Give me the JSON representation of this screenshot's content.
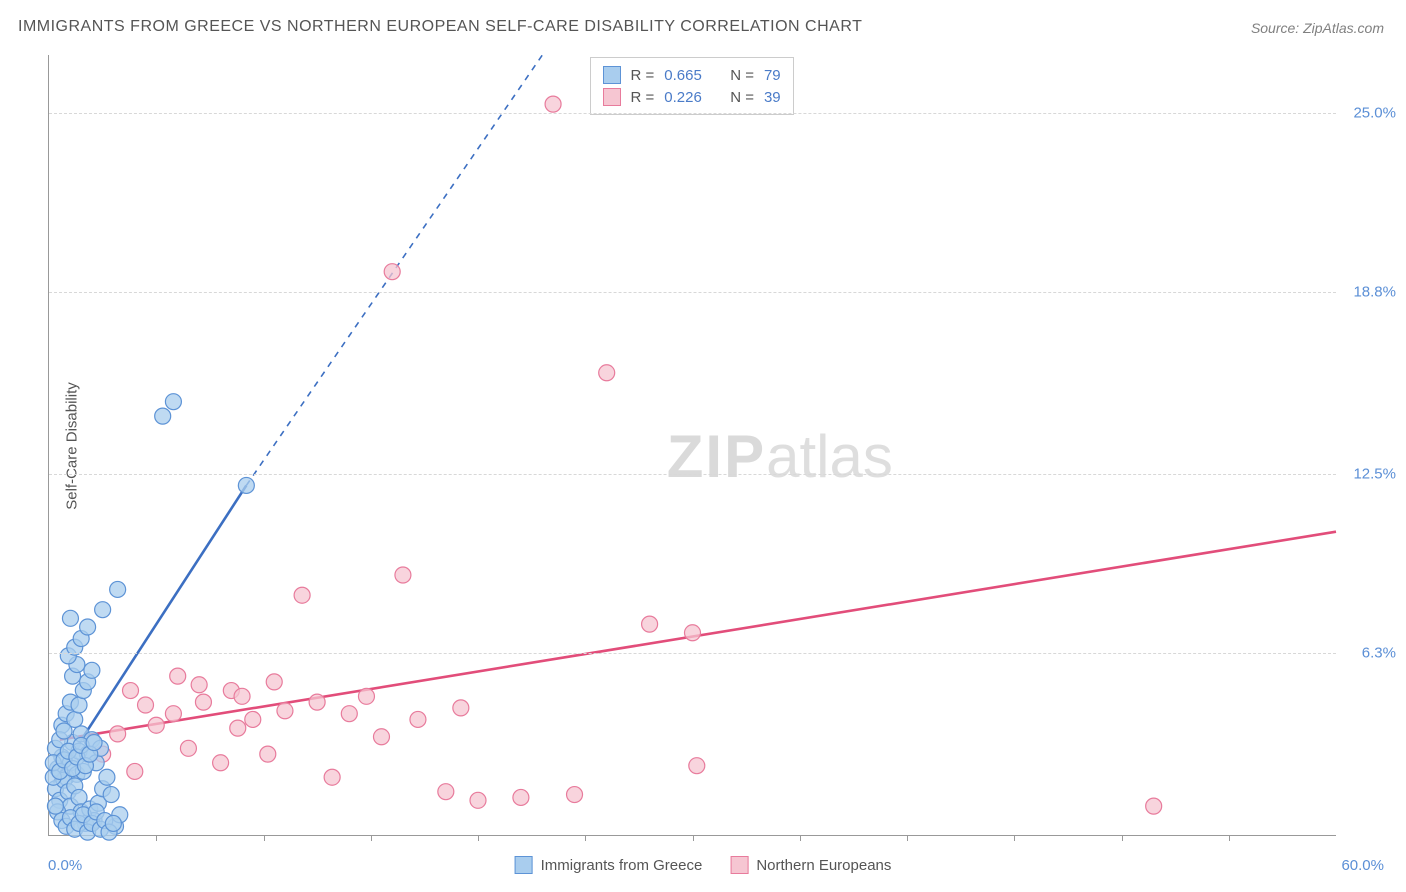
{
  "title": "IMMIGRANTS FROM GREECE VS NORTHERN EUROPEAN SELF-CARE DISABILITY CORRELATION CHART",
  "source_label": "Source: ZipAtlas.com",
  "watermark_zip": "ZIP",
  "watermark_atlas": "atlas",
  "chart": {
    "type": "scatter",
    "background_color": "#ffffff",
    "grid_color": "#d8d8d8",
    "axis_color": "#999999",
    "label_color": "#555555",
    "tick_label_color": "#5b8fd6",
    "xlim": [
      0,
      60
    ],
    "ylim": [
      0,
      27
    ],
    "xtick_step": 5,
    "ytick_positions": [
      6.3,
      12.5,
      18.8,
      25.0
    ],
    "xaxis_min_label": "0.0%",
    "xaxis_max_label": "60.0%",
    "ylabel": "Self-Care Disability",
    "marker_radius": 8,
    "marker_stroke_width": 1.2,
    "line_width_solid": 2.6,
    "line_width_dash": 1.6
  },
  "series": [
    {
      "name": "Immigrants from Greece",
      "color_fill": "#a9cdee",
      "color_stroke": "#5d93d6",
      "line_color": "#3c6fc2",
      "r_value": "0.665",
      "n_value": "79",
      "trend": {
        "x1": 0.2,
        "y1": 1.8,
        "x2": 9.2,
        "y2": 12.1,
        "x2_dash": 23.0,
        "y2_dash": 27.0
      },
      "points": [
        [
          0.4,
          2.3
        ],
        [
          0.6,
          2.7
        ],
        [
          0.8,
          2.0
        ],
        [
          1.0,
          2.5
        ],
        [
          1.1,
          3.2
        ],
        [
          1.3,
          2.1
        ],
        [
          1.4,
          2.9
        ],
        [
          1.5,
          3.5
        ],
        [
          0.3,
          1.6
        ],
        [
          0.5,
          1.2
        ],
        [
          0.7,
          1.9
        ],
        [
          0.9,
          1.5
        ],
        [
          1.0,
          1.0
        ],
        [
          1.2,
          1.7
        ],
        [
          1.4,
          1.3
        ],
        [
          1.6,
          2.2
        ],
        [
          1.8,
          2.8
        ],
        [
          2.0,
          3.3
        ],
        [
          2.2,
          2.5
        ],
        [
          2.4,
          3.0
        ],
        [
          1.5,
          0.8
        ],
        [
          1.7,
          0.4
        ],
        [
          1.9,
          0.9
        ],
        [
          2.1,
          0.5
        ],
        [
          2.3,
          1.1
        ],
        [
          2.5,
          1.6
        ],
        [
          2.7,
          2.0
        ],
        [
          2.9,
          1.4
        ],
        [
          3.1,
          0.3
        ],
        [
          3.3,
          0.7
        ],
        [
          0.6,
          3.8
        ],
        [
          0.8,
          4.2
        ],
        [
          1.0,
          4.6
        ],
        [
          1.2,
          4.0
        ],
        [
          1.4,
          4.5
        ],
        [
          1.6,
          5.0
        ],
        [
          1.8,
          5.3
        ],
        [
          2.0,
          5.7
        ],
        [
          1.1,
          5.5
        ],
        [
          1.3,
          5.9
        ],
        [
          0.9,
          6.2
        ],
        [
          1.2,
          6.5
        ],
        [
          1.5,
          6.8
        ],
        [
          1.8,
          7.2
        ],
        [
          1.0,
          7.5
        ],
        [
          2.5,
          7.8
        ],
        [
          3.2,
          8.5
        ],
        [
          5.3,
          14.5
        ],
        [
          5.8,
          15.0
        ],
        [
          9.2,
          12.1
        ],
        [
          0.4,
          0.8
        ],
        [
          0.6,
          0.5
        ],
        [
          0.8,
          0.3
        ],
        [
          1.0,
          0.6
        ],
        [
          1.2,
          0.2
        ],
        [
          1.4,
          0.4
        ],
        [
          1.6,
          0.7
        ],
        [
          1.8,
          0.1
        ],
        [
          2.0,
          0.4
        ],
        [
          2.2,
          0.8
        ],
        [
          2.4,
          0.2
        ],
        [
          2.6,
          0.5
        ],
        [
          2.8,
          0.1
        ],
        [
          3.0,
          0.4
        ],
        [
          0.3,
          3.0
        ],
        [
          0.5,
          3.3
        ],
        [
          0.7,
          3.6
        ],
        [
          0.2,
          2.0
        ],
        [
          0.2,
          2.5
        ],
        [
          0.3,
          1.0
        ],
        [
          0.5,
          2.2
        ],
        [
          0.7,
          2.6
        ],
        [
          0.9,
          2.9
        ],
        [
          1.1,
          2.3
        ],
        [
          1.3,
          2.7
        ],
        [
          1.5,
          3.1
        ],
        [
          1.7,
          2.4
        ],
        [
          1.9,
          2.8
        ],
        [
          2.1,
          3.2
        ]
      ]
    },
    {
      "name": "Northern Europeans",
      "color_fill": "#f6c6d2",
      "color_stroke": "#e87b9c",
      "line_color": "#e24d7a",
      "r_value": "0.226",
      "n_value": "39",
      "trend": {
        "x1": 0.5,
        "y1": 3.3,
        "x2": 60.0,
        "y2": 10.5
      },
      "points": [
        [
          2.5,
          2.8
        ],
        [
          3.2,
          3.5
        ],
        [
          4.0,
          2.2
        ],
        [
          5.0,
          3.8
        ],
        [
          5.8,
          4.2
        ],
        [
          6.5,
          3.0
        ],
        [
          7.2,
          4.6
        ],
        [
          8.0,
          2.5
        ],
        [
          8.8,
          3.7
        ],
        [
          9.5,
          4.0
        ],
        [
          10.2,
          2.8
        ],
        [
          11.0,
          4.3
        ],
        [
          11.8,
          8.3
        ],
        [
          12.5,
          4.6
        ],
        [
          13.2,
          2.0
        ],
        [
          14.0,
          4.2
        ],
        [
          14.8,
          4.8
        ],
        [
          15.5,
          3.4
        ],
        [
          16.5,
          9.0
        ],
        [
          17.2,
          4.0
        ],
        [
          18.5,
          1.5
        ],
        [
          19.2,
          4.4
        ],
        [
          20.0,
          1.2
        ],
        [
          22.0,
          1.3
        ],
        [
          23.5,
          25.3
        ],
        [
          24.5,
          1.4
        ],
        [
          26.0,
          16.0
        ],
        [
          28.0,
          7.3
        ],
        [
          30.2,
          2.4
        ],
        [
          16.0,
          19.5
        ],
        [
          7.0,
          5.2
        ],
        [
          3.8,
          5.0
        ],
        [
          4.5,
          4.5
        ],
        [
          6.0,
          5.5
        ],
        [
          8.5,
          5.0
        ],
        [
          51.5,
          1.0
        ],
        [
          30.0,
          7.0
        ],
        [
          10.5,
          5.3
        ],
        [
          9.0,
          4.8
        ]
      ]
    }
  ],
  "stats_labels": {
    "r": "R =",
    "n": "N ="
  }
}
